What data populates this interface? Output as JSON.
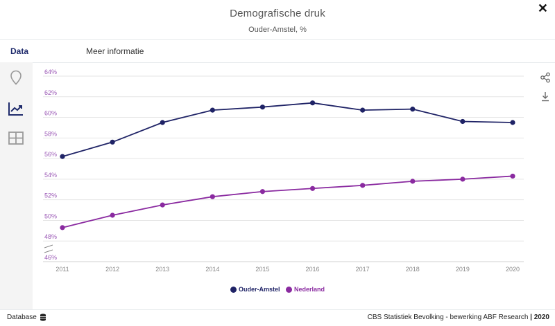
{
  "header": {
    "title": "Demografische druk",
    "subtitle": "Ouder-Amstel, %"
  },
  "tabs": [
    {
      "label": "Data"
    },
    {
      "label": "Meer informatie"
    }
  ],
  "sidebar": {
    "items": [
      {
        "icon": "map-pin-icon"
      },
      {
        "icon": "line-chart-icon"
      },
      {
        "icon": "table-icon"
      }
    ]
  },
  "tools": [
    {
      "icon": "share-icon"
    },
    {
      "icon": "download-icon"
    }
  ],
  "colors": {
    "accent": "#1e2a6b",
    "series1": "#1f2366",
    "series2": "#8a2aa0",
    "axis_labels": "#9b59b6",
    "grid": "#e5e5e5"
  },
  "chart_data": {
    "type": "line",
    "title": "Demografische druk",
    "subtitle": "Ouder-Amstel, %",
    "x": [
      "2011",
      "2012",
      "2013",
      "2014",
      "2015",
      "2016",
      "2017",
      "2018",
      "2019",
      "2020"
    ],
    "ylim": [
      46,
      64
    ],
    "yticks": [
      "46%",
      "48%",
      "50%",
      "52%",
      "54%",
      "56%",
      "58%",
      "60%",
      "62%",
      "64%"
    ],
    "series": [
      {
        "name": "Ouder-Amstel",
        "color": "#1f2366",
        "values": [
          56.2,
          57.6,
          59.5,
          60.7,
          61.0,
          61.4,
          60.7,
          60.8,
          59.6,
          59.5
        ]
      },
      {
        "name": "Nederland",
        "color": "#8a2aa0",
        "values": [
          49.3,
          50.5,
          51.5,
          52.3,
          52.8,
          53.1,
          53.4,
          53.8,
          54.0,
          54.3
        ]
      }
    ],
    "grid": true,
    "legend": "bottom-center"
  },
  "footer": {
    "left": "Database",
    "source": "CBS Statistiek Bevolking - bewerking ABF Research",
    "year": "| 2020"
  }
}
